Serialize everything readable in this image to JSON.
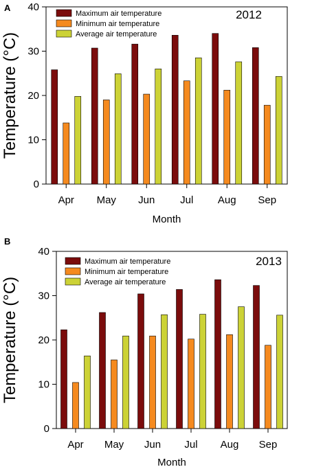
{
  "legend": {
    "entries": [
      "Maximum air temperature",
      "Minimum air temperature",
      "Average air temperature"
    ],
    "colors": [
      "#7B0C0C",
      "#F58A1F",
      "#CCD236"
    ]
  },
  "chart_data": [
    {
      "panel": "A",
      "type": "bar",
      "annotation": "2012",
      "xlabel": "Month",
      "ylabel": "Temperature (°C)",
      "ylim": [
        0,
        40
      ],
      "yticks": [
        0,
        10,
        20,
        30,
        40
      ],
      "grid": false,
      "legend_placement": "top-left",
      "categories": [
        "Apr",
        "May",
        "Jun",
        "Jul",
        "Aug",
        "Sep"
      ],
      "series": [
        {
          "name": "Maximum air temperature",
          "values": [
            25.8,
            30.7,
            31.6,
            33.6,
            34.0,
            30.8
          ]
        },
        {
          "name": "Minimum air temperature",
          "values": [
            13.8,
            19.0,
            20.3,
            23.3,
            21.2,
            17.8
          ]
        },
        {
          "name": "Average air temperature",
          "values": [
            19.8,
            24.9,
            26.0,
            28.5,
            27.6,
            24.3
          ]
        }
      ]
    },
    {
      "panel": "B",
      "type": "bar",
      "annotation": "2013",
      "xlabel": "Month",
      "ylabel": "Temperature (°C)",
      "ylim": [
        0,
        40
      ],
      "yticks": [
        0,
        10,
        20,
        30,
        40
      ],
      "grid": false,
      "legend_placement": "top-left",
      "categories": [
        "Apr",
        "May",
        "Jun",
        "Jul",
        "Aug",
        "Sep"
      ],
      "series": [
        {
          "name": "Maximum air temperature",
          "values": [
            22.3,
            26.2,
            30.4,
            31.4,
            33.6,
            32.3
          ]
        },
        {
          "name": "Minimum air temperature",
          "values": [
            10.4,
            15.5,
            20.9,
            20.2,
            21.2,
            18.8
          ]
        },
        {
          "name": "Average air temperature",
          "values": [
            16.4,
            20.9,
            25.7,
            25.8,
            27.5,
            25.6
          ]
        }
      ]
    }
  ]
}
